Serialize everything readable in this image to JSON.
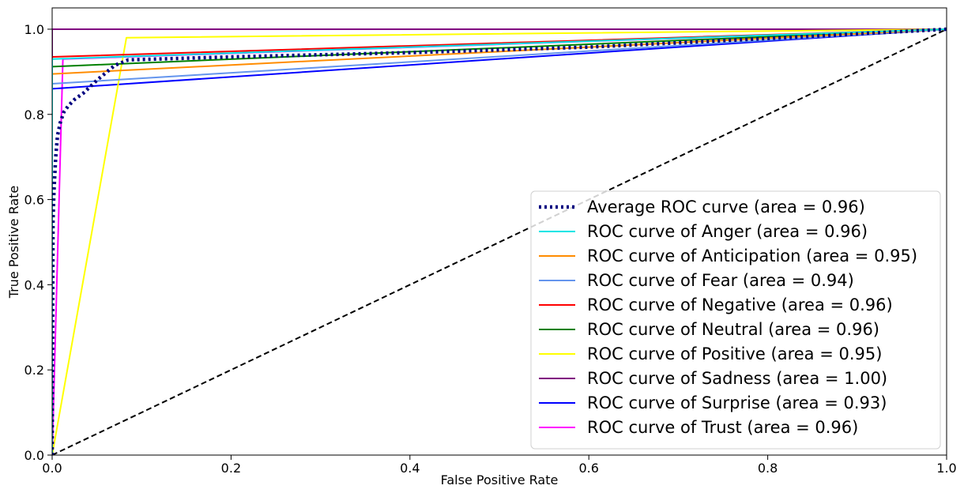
{
  "chart_data": {
    "type": "line",
    "title": "",
    "xlabel": "False Positive Rate",
    "ylabel": "True Positive Rate",
    "xlim": [
      0.0,
      1.0
    ],
    "ylim": [
      0.0,
      1.05
    ],
    "x_ticks": [
      "0.0",
      "0.2",
      "0.4",
      "0.6",
      "0.8",
      "1.0"
    ],
    "y_ticks": [
      "0.0",
      "0.2",
      "0.4",
      "0.6",
      "0.8",
      "1.0"
    ],
    "grid": false,
    "legend_position": "lower-right",
    "series": [
      {
        "name": "Average ROC curve (area = 0.96)",
        "color": "#000080",
        "style": "dotted",
        "x": [
          0.0,
          0.001,
          0.002,
          0.004,
          0.006,
          0.009,
          0.013,
          0.018,
          0.025,
          0.035,
          0.05,
          0.07,
          0.085,
          0.2,
          0.4,
          0.6,
          0.8,
          1.0
        ],
        "y": [
          0.0,
          0.55,
          0.62,
          0.7,
          0.75,
          0.78,
          0.805,
          0.82,
          0.835,
          0.85,
          0.88,
          0.915,
          0.928,
          0.935,
          0.945,
          0.958,
          0.978,
          1.0
        ]
      },
      {
        "name": "ROC curve of Anger (area = 0.96)",
        "color": "#00e5e5",
        "style": "solid",
        "x": [
          0.0,
          0.0,
          1.0
        ],
        "y": [
          0.0,
          0.93,
          1.0
        ]
      },
      {
        "name": "ROC curve of Anticipation (area = 0.95)",
        "color": "#ff8c00",
        "style": "solid",
        "x": [
          0.0,
          0.0,
          1.0
        ],
        "y": [
          0.0,
          0.895,
          1.0
        ]
      },
      {
        "name": "ROC curve of Fear (area = 0.94)",
        "color": "#6495ed",
        "style": "solid",
        "x": [
          0.0,
          0.0,
          1.0
        ],
        "y": [
          0.0,
          0.872,
          1.0
        ]
      },
      {
        "name": "ROC curve of Negative (area = 0.96)",
        "color": "#ff0000",
        "style": "solid",
        "x": [
          0.0,
          0.0,
          1.0
        ],
        "y": [
          0.0,
          0.935,
          1.0
        ]
      },
      {
        "name": "ROC curve of Neutral (area = 0.96)",
        "color": "#008000",
        "style": "solid",
        "x": [
          0.0,
          0.0,
          1.0
        ],
        "y": [
          0.0,
          0.912,
          1.0
        ]
      },
      {
        "name": "ROC curve of Positive (area = 0.95)",
        "color": "#ffff00",
        "style": "solid",
        "x": [
          0.0,
          0.083,
          1.0
        ],
        "y": [
          0.0,
          0.98,
          1.0
        ]
      },
      {
        "name": "ROC curve of Sadness (area = 1.00)",
        "color": "#800080",
        "style": "solid",
        "x": [
          0.0,
          0.0,
          1.0
        ],
        "y": [
          0.0,
          1.0,
          1.0
        ]
      },
      {
        "name": "ROC curve of Surprise (area = 0.93)",
        "color": "#0000ff",
        "style": "solid",
        "x": [
          0.0,
          0.0,
          1.0
        ],
        "y": [
          0.0,
          0.86,
          1.0
        ]
      },
      {
        "name": "ROC curve of Trust (area = 0.96)",
        "color": "#ff00ff",
        "style": "solid",
        "x": [
          0.0,
          0.012,
          1.0
        ],
        "y": [
          0.0,
          0.93,
          1.0
        ]
      }
    ],
    "reference_line": {
      "color": "#000000",
      "style": "dashed",
      "x": [
        0.0,
        1.0
      ],
      "y": [
        0.0,
        1.0
      ]
    }
  }
}
